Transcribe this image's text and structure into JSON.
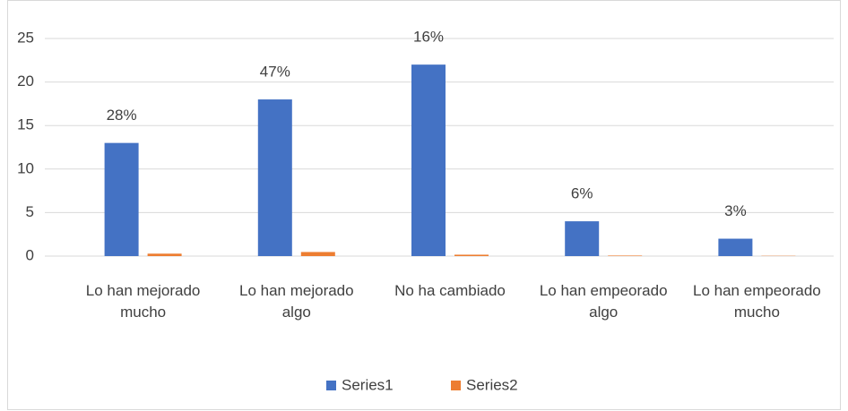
{
  "chart_data": {
    "type": "bar",
    "categories": [
      "Lo han mejorado mucho",
      "Lo han mejorado algo",
      "No ha cambiado",
      "Lo han empeorado algo",
      "Lo han empeorado mucho"
    ],
    "series": [
      {
        "name": "Series1",
        "color": "#4472c4",
        "values": [
          13,
          18,
          22,
          4,
          2
        ]
      },
      {
        "name": "Series2",
        "color": "#ed7d31",
        "values": [
          0.28,
          0.47,
          0.16,
          0.06,
          0.03
        ],
        "value_labels": [
          "28%",
          "47%",
          "16%",
          "6%",
          "3%"
        ]
      }
    ],
    "ylim": [
      0,
      25
    ],
    "yticks": [
      0,
      5,
      10,
      15,
      20,
      25
    ],
    "grid": true,
    "legend": "bottom"
  }
}
